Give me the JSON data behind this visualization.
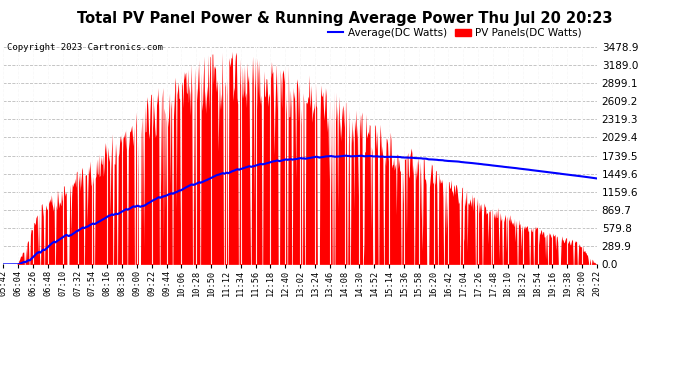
{
  "title": "Total PV Panel Power & Running Average Power Thu Jul 20 20:23",
  "copyright": "Copyright 2023 Cartronics.com",
  "legend_avg": "Average(DC Watts)",
  "legend_pv": "PV Panels(DC Watts)",
  "ymax": 3478.9,
  "ymin": 0.0,
  "yticks": [
    0.0,
    289.9,
    579.8,
    869.7,
    1159.6,
    1449.6,
    1739.5,
    2029.4,
    2319.3,
    2609.2,
    2899.1,
    3189.0,
    3478.9
  ],
  "xtick_labels": [
    "05:42",
    "06:04",
    "06:26",
    "06:48",
    "07:10",
    "07:32",
    "07:54",
    "08:16",
    "08:38",
    "09:00",
    "09:22",
    "09:44",
    "10:06",
    "10:28",
    "10:50",
    "11:12",
    "11:34",
    "11:56",
    "12:18",
    "12:40",
    "13:02",
    "13:24",
    "13:46",
    "14:08",
    "14:30",
    "14:52",
    "15:14",
    "15:36",
    "15:58",
    "16:20",
    "16:42",
    "17:04",
    "17:26",
    "17:48",
    "18:10",
    "18:32",
    "18:54",
    "19:16",
    "19:38",
    "20:00",
    "20:22"
  ],
  "background_color": "#ffffff",
  "grid_color": "#aaaaaa",
  "pv_color": "#ff0000",
  "avg_color": "#0000ff",
  "title_color": "#000000",
  "copyright_color": "#000000",
  "legend_avg_color": "#0000ff",
  "legend_pv_color": "#ff0000"
}
